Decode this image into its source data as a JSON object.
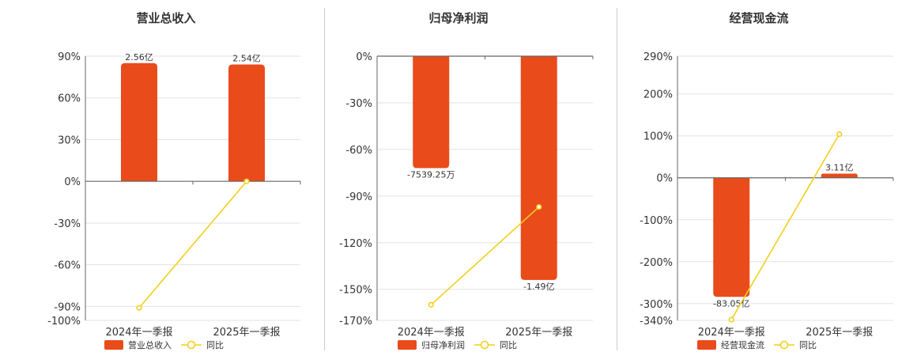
{
  "colors": {
    "bar": "#e94b1b",
    "line": "#f2cf1c",
    "grid": "#e3e3e3",
    "axis": "#666666",
    "divider": "#cccccc"
  },
  "chart_data": [
    {
      "type": "bar",
      "title": "营业总收入",
      "categories": [
        "2024年一季报",
        "2025年一季报"
      ],
      "ylim": [
        -100,
        90
      ],
      "yticks": [
        90,
        60,
        30,
        0,
        -30,
        -60,
        -90,
        -100
      ],
      "ytick_labels": [
        "90%",
        "60%",
        "30%",
        "0%",
        "-30%",
        "-60%",
        "-90%",
        "-100%"
      ],
      "series": [
        {
          "name": "营业总收入",
          "kind": "bar",
          "values": [
            85,
            84
          ],
          "labels": [
            "2.56亿",
            "2.54亿"
          ]
        },
        {
          "name": "同比",
          "kind": "line",
          "values": [
            -91,
            0
          ]
        }
      ],
      "legend": "bottom-center",
      "grid": true
    },
    {
      "type": "bar",
      "title": "归母净利润",
      "categories": [
        "2024年一季报",
        "2025年一季报"
      ],
      "ylim": [
        -170,
        0
      ],
      "yticks": [
        0,
        -30,
        -60,
        -90,
        -120,
        -150,
        -170
      ],
      "ytick_labels": [
        "0%",
        "-30%",
        "-60%",
        "-90%",
        "-120%",
        "-150%",
        "-170%"
      ],
      "series": [
        {
          "name": "归母净利润",
          "kind": "bar",
          "values": [
            -72,
            -144
          ],
          "labels": [
            "-7539.25万",
            "-1.49亿"
          ]
        },
        {
          "name": "同比",
          "kind": "line",
          "values": [
            -160,
            -97
          ]
        }
      ],
      "legend": "bottom-center",
      "grid": true
    },
    {
      "type": "bar",
      "title": "经营现金流",
      "categories": [
        "2024年一季报",
        "2025年一季报"
      ],
      "ylim": [
        -340,
        290
      ],
      "yticks": [
        290,
        200,
        100,
        0,
        -100,
        -200,
        -300,
        -340
      ],
      "ytick_labels": [
        "290%",
        "200%",
        "100%",
        "0%",
        "-100%",
        "-200%",
        "-300%",
        "-340%"
      ],
      "series": [
        {
          "name": "经营现金流",
          "kind": "bar",
          "values": [
            -284,
            10
          ],
          "labels": [
            "-83.05亿",
            "3.11亿"
          ]
        },
        {
          "name": "同比",
          "kind": "line",
          "values": [
            -338,
            104
          ]
        }
      ],
      "legend": "bottom-center",
      "grid": true
    }
  ]
}
